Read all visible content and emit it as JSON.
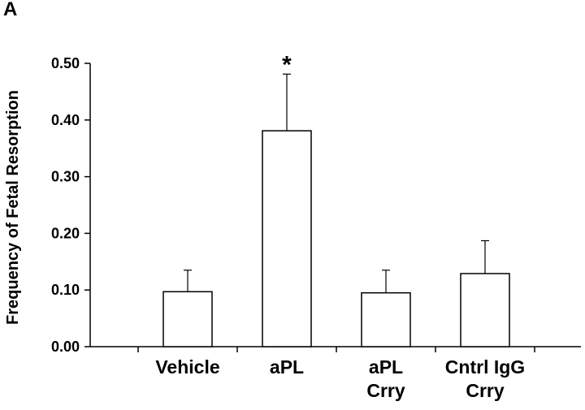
{
  "panel_label": "A",
  "chart_data": {
    "type": "bar",
    "title": "",
    "xlabel": "",
    "ylabel": "Frequency of Fetal Resorption",
    "ylim": [
      0,
      0.5
    ],
    "yticks": [
      "0.00",
      "0.10",
      "0.20",
      "0.30",
      "0.40",
      "0.50"
    ],
    "categories": [
      [
        "Vehicle"
      ],
      [
        "aPL"
      ],
      [
        "aPL",
        "Crry"
      ],
      [
        "Cntrl IgG",
        "Crry"
      ]
    ],
    "values": [
      0.097,
      0.381,
      0.095,
      0.129
    ],
    "errors": [
      0.038,
      0.1,
      0.04,
      0.058
    ],
    "annotations": [
      {
        "category_index": 1,
        "text": "*"
      }
    ],
    "grid": false,
    "legend": "none",
    "bar_fill": "#ffffff",
    "bar_stroke": "#000000"
  }
}
